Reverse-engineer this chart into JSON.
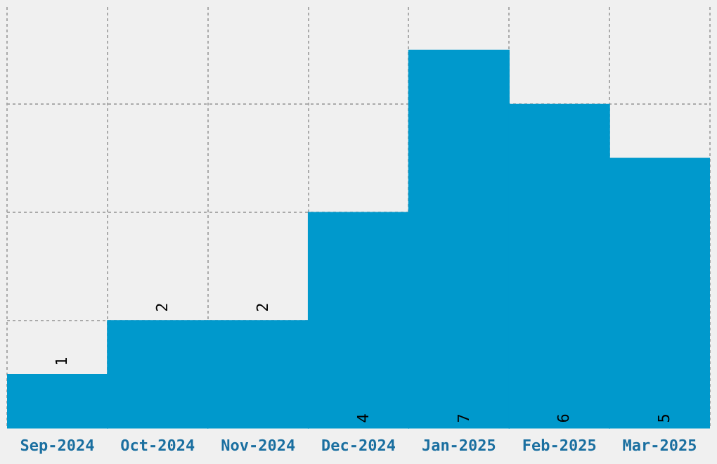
{
  "chart_data": {
    "type": "bar",
    "categories": [
      "Sep-2024",
      "Oct-2024",
      "Nov-2024",
      "Dec-2024",
      "Jan-2025",
      "Feb-2025",
      "Mar-2025"
    ],
    "values": [
      1,
      2,
      2,
      4,
      7,
      6,
      5
    ],
    "color": "#0099cc",
    "ylim": [
      0,
      7.8
    ],
    "yticks": [
      {
        "value": 2,
        "label": null
      },
      {
        "value": 4,
        "label": null
      },
      {
        "value": 6,
        "label": null
      }
    ],
    "grid": true,
    "tick_labels": "x",
    "data_labels": true
  }
}
